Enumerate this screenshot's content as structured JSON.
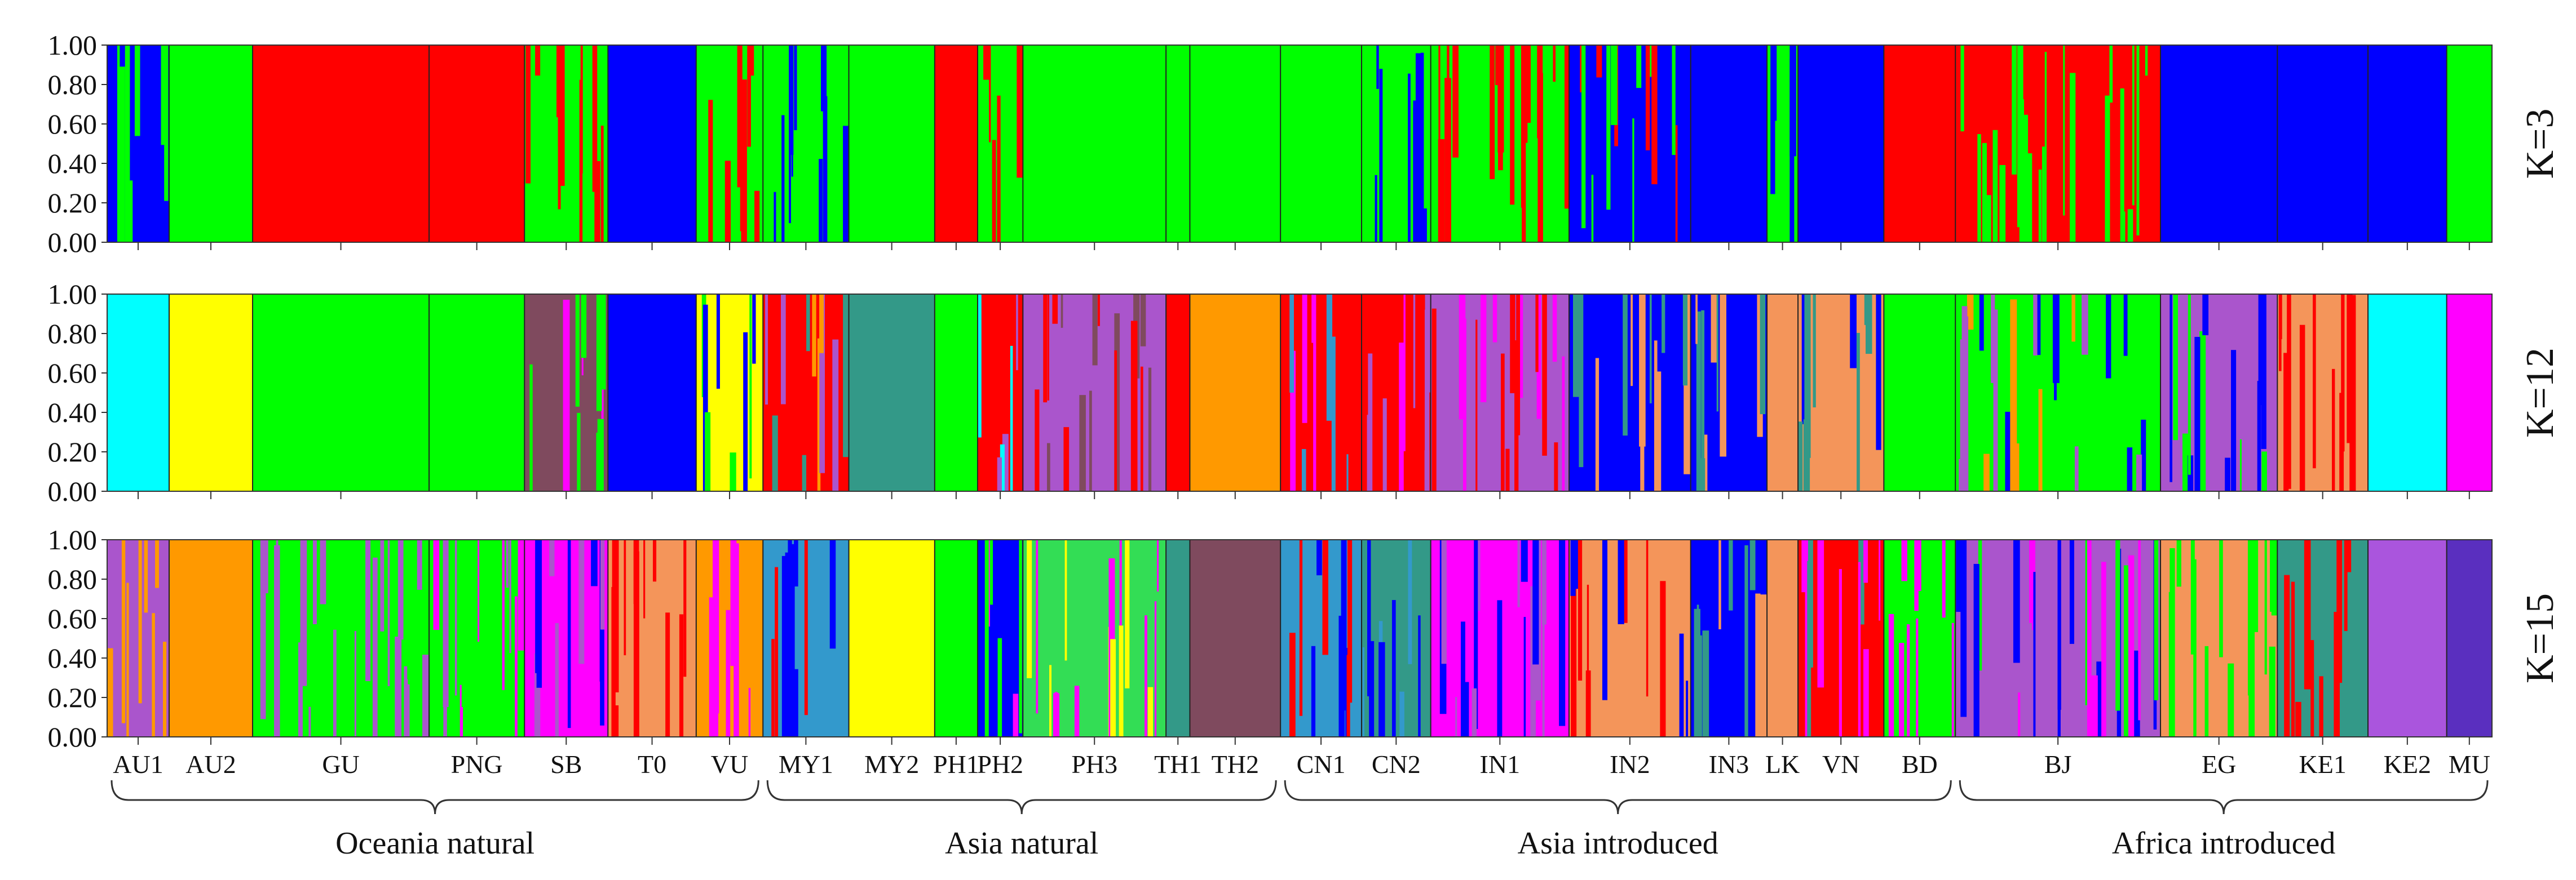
{
  "chart_data": {
    "type": "stacked-bar",
    "description_source": "ADMIXTURE/STRUCTURE ancestry plot",
    "y_ticks": [
      "1.00",
      "0.80",
      "0.60",
      "0.40",
      "0.20",
      "0.00"
    ],
    "ylim": [
      0,
      1
    ],
    "populations": [
      {
        "name": "AU1",
        "start": 0.0,
        "end": 2.6
      },
      {
        "name": "AU2",
        "start": 2.6,
        "end": 6.1
      },
      {
        "name": "GU",
        "start": 6.1,
        "end": 13.5
      },
      {
        "name": "PNG",
        "start": 13.5,
        "end": 17.5
      },
      {
        "name": "SB",
        "start": 17.5,
        "end": 21.0
      },
      {
        "name": "T0",
        "start": 21.0,
        "end": 24.7
      },
      {
        "name": "VU",
        "start": 24.7,
        "end": 27.5
      },
      {
        "name": "MY1",
        "start": 27.5,
        "end": 31.1
      },
      {
        "name": "MY2",
        "start": 31.1,
        "end": 34.7
      },
      {
        "name": "PH1",
        "start": 34.7,
        "end": 36.5
      },
      {
        "name": "PH2",
        "start": 36.5,
        "end": 38.4
      },
      {
        "name": "PH3",
        "start": 38.4,
        "end": 44.4
      },
      {
        "name": "TH1",
        "start": 44.4,
        "end": 45.4
      },
      {
        "name": "TH2",
        "start": 45.4,
        "end": 49.2
      },
      {
        "name": "CN1",
        "start": 49.2,
        "end": 52.6
      },
      {
        "name": "CN2",
        "start": 52.6,
        "end": 55.5
      },
      {
        "name": "IN1",
        "start": 55.5,
        "end": 61.3
      },
      {
        "name": "IN2",
        "start": 61.3,
        "end": 66.4
      },
      {
        "name": "IN3",
        "start": 66.4,
        "end": 69.6
      },
      {
        "name": "LK",
        "start": 69.6,
        "end": 70.9
      },
      {
        "name": "VN",
        "start": 70.9,
        "end": 74.5
      },
      {
        "name": "BD",
        "start": 74.5,
        "end": 77.5
      },
      {
        "name": "BJ",
        "start": 77.5,
        "end": 86.1
      },
      {
        "name": "EG",
        "start": 86.1,
        "end": 91.0
      },
      {
        "name": "KE1",
        "start": 91.0,
        "end": 94.8
      },
      {
        "name": "KE2",
        "start": 94.8,
        "end": 98.1
      },
      {
        "name": "MU",
        "start": 98.1,
        "end": 100.0
      }
    ],
    "groups": [
      {
        "label": "Oceania natural",
        "first": "AU1",
        "last": "VU"
      },
      {
        "label": "Asia natural",
        "first": "MY1",
        "last": "TH2"
      },
      {
        "label": "Asia introduced",
        "first": "CN1",
        "last": "BD"
      },
      {
        "label": "Africa introduced",
        "first": "BJ",
        "last": "MU"
      }
    ],
    "panels": [
      {
        "k_label": "K=3",
        "clusters": [
          "#0000ff",
          "#00ff00",
          "#ff0000"
        ],
        "dominant": {
          "AU1": "#0000ff",
          "AU2": "#00ff00",
          "GU": "#ff0000",
          "PNG": "#ff0000",
          "SB": "#00ff00",
          "T0": "#0000ff",
          "VU": "#00ff00",
          "MY1": "#00ff00",
          "MY2": "#00ff00",
          "PH1": "#ff0000",
          "PH2": "#00ff00",
          "PH3": "#00ff00",
          "TH1": "#00ff00",
          "TH2": "#00ff00",
          "CN1": "#00ff00",
          "CN2": "#00ff00",
          "IN1": "#00ff00",
          "IN2": "#0000ff",
          "IN3": "#0000ff",
          "LK": "#00ff00",
          "VN": "#0000ff",
          "BD": "#ff0000",
          "BJ": "#ff0000",
          "EG": "#0000ff",
          "KE1": "#0000ff",
          "KE2": "#0000ff",
          "MU": "#00ff00"
        },
        "admixture": {
          "AU1": [
            "#00ff00"
          ],
          "SB": [
            "#ff0000"
          ],
          "VU": [
            "#ff0000"
          ],
          "PH2": [
            "#ff0000"
          ],
          "IN1": [
            "#ff0000"
          ],
          "IN2": [
            "#ff0000",
            "#00ff00"
          ],
          "LK": [
            "#0000ff"
          ],
          "BJ": [
            "#00ff00"
          ],
          "MY1": [
            "#0000ff"
          ],
          "CN2": [
            "#0000ff"
          ]
        }
      },
      {
        "k_label": "K=12",
        "clusters": [
          "#00ffff",
          "#ffff00",
          "#00ff00",
          "#7f4a5e",
          "#0000ff",
          "#339988",
          "#ff0000",
          "#aa55cc",
          "#ff9900",
          "#f4955a",
          "#ff00ff",
          "#3399cc"
        ],
        "dominant": {
          "AU1": "#00ffff",
          "AU2": "#ffff00",
          "GU": "#00ff00",
          "PNG": "#00ff00",
          "SB": "#7f4a5e",
          "T0": "#0000ff",
          "VU": "#ffff00",
          "MY1": "#ff0000",
          "MY2": "#339988",
          "PH1": "#00ff00",
          "PH2": "#ff0000",
          "PH3": "#aa55cc",
          "TH1": "#ff0000",
          "TH2": "#ff9900",
          "CN1": "#ff0000",
          "CN2": "#ff0000",
          "IN1": "#aa55cc",
          "IN2": "#0000ff",
          "IN3": "#0000ff",
          "LK": "#f4955a",
          "VN": "#f4955a",
          "BD": "#00ff00",
          "BJ": "#00ff00",
          "EG": "#aa55cc",
          "KE1": "#f4955a",
          "KE2": "#00ffff",
          "MU": "#ff00ff"
        },
        "admixture": {
          "SB": [
            "#ff00ff",
            "#00ff00"
          ],
          "VU": [
            "#00ff00",
            "#0000ff"
          ],
          "MY1": [
            "#339988",
            "#ff9900",
            "#aa55cc"
          ],
          "PH2": [
            "#aa55cc",
            "#00ffff"
          ],
          "PH3": [
            "#ff0000",
            "#7f4a5e"
          ],
          "CN1": [
            "#3399cc",
            "#ff00ff"
          ],
          "CN2": [
            "#ff00ff",
            "#aa55cc"
          ],
          "IN1": [
            "#ff00ff",
            "#ff0000"
          ],
          "IN2": [
            "#f4955a",
            "#339988"
          ],
          "IN3": [
            "#f4955a",
            "#339988"
          ],
          "VN": [
            "#0000ff",
            "#339988"
          ],
          "BJ": [
            "#aa55cc",
            "#ff9900",
            "#0000ff"
          ],
          "EG": [
            "#00ff00",
            "#0000ff"
          ],
          "KE1": [
            "#ff0000"
          ]
        }
      },
      {
        "k_label": "K=15",
        "clusters": [
          "#aa55cc",
          "#ff9900",
          "#00ff00",
          "#00ffff",
          "#ff00ff",
          "#f4955a",
          "#ff0000",
          "#3399cc",
          "#ffff00",
          "#0000ff",
          "#33dd55",
          "#7f4a5e",
          "#339988",
          "#aa55dd",
          "#5a2fbf"
        ],
        "dominant": {
          "AU1": "#aa55cc",
          "AU2": "#ff9900",
          "GU": "#00ff00",
          "PNG": "#00ff00",
          "SB": "#ff00ff",
          "T0": "#f4955a",
          "VU": "#ff9900",
          "MY1": "#3399cc",
          "MY2": "#ffff00",
          "PH1": "#00ff00",
          "PH2": "#0000ff",
          "PH3": "#33dd55",
          "TH1": "#339988",
          "TH2": "#7f4a5e",
          "CN1": "#3399cc",
          "CN2": "#339988",
          "IN1": "#ff00ff",
          "IN2": "#f4955a",
          "IN3": "#0000ff",
          "LK": "#f4955a",
          "VN": "#ff0000",
          "BD": "#00ff00",
          "BJ": "#aa55cc",
          "EG": "#f4955a",
          "KE1": "#339988",
          "KE2": "#aa55dd",
          "MU": "#5a2fbf"
        },
        "admixture": {
          "AU1": [
            "#ff9900"
          ],
          "GU": [
            "#aa55cc"
          ],
          "PNG": [
            "#aa55cc",
            "#ff00ff"
          ],
          "SB": [
            "#aa55cc",
            "#0000ff"
          ],
          "T0": [
            "#ff0000"
          ],
          "VU": [
            "#ff00ff"
          ],
          "MY1": [
            "#ff0000",
            "#0000ff"
          ],
          "PH2": [
            "#ff00ff",
            "#00ff00"
          ],
          "PH3": [
            "#ffff00",
            "#ff00ff"
          ],
          "CN1": [
            "#ff0000",
            "#0000ff"
          ],
          "CN2": [
            "#0000ff",
            "#3399cc"
          ],
          "IN1": [
            "#0000ff",
            "#aa55cc"
          ],
          "IN2": [
            "#0000ff",
            "#ff0000"
          ],
          "IN3": [
            "#f4955a",
            "#339988"
          ],
          "VN": [
            "#339988",
            "#ff00ff"
          ],
          "BD": [
            "#ff00ff"
          ],
          "BJ": [
            "#ff00ff",
            "#0000ff",
            "#00ff00"
          ],
          "EG": [
            "#00ff00"
          ],
          "KE1": [
            "#ff0000"
          ]
        }
      }
    ]
  }
}
